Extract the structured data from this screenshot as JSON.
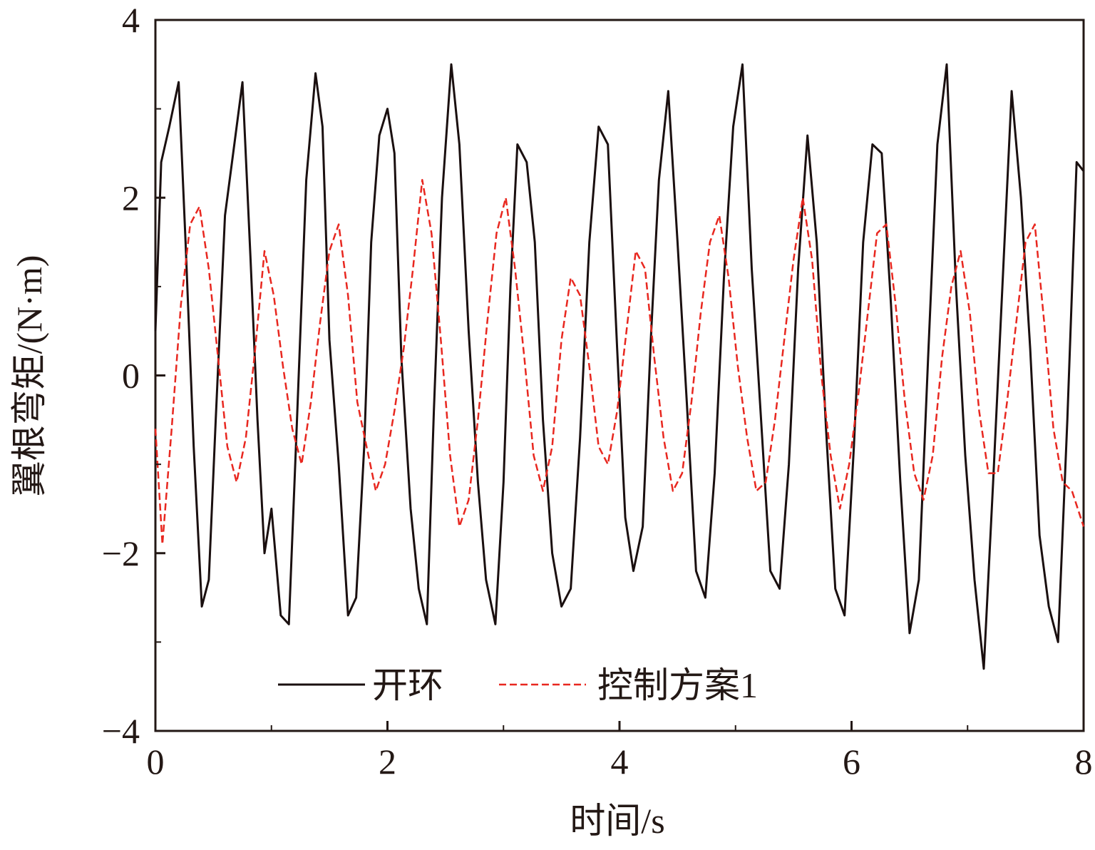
{
  "chart_data": {
    "type": "line",
    "xlabel": "时间/s",
    "ylabel": "翼根弯矩/(N·m)",
    "xlim": [
      0,
      8
    ],
    "ylim": [
      -4,
      4
    ],
    "x_ticks": [
      "0",
      "2",
      "4",
      "6",
      "8"
    ],
    "y_ticks": [
      "4",
      "2",
      "0",
      "−2",
      "−4"
    ],
    "grid": false,
    "legend_position": "bottom-center",
    "colors": {
      "open_loop": "#1a0f0f",
      "control_1": "#e8271f",
      "axis": "#231815"
    },
    "series": [
      {
        "name": "开环",
        "color": "#1a0f0f",
        "style": "solid",
        "x": [
          0,
          0.05,
          0.12,
          0.2,
          0.26,
          0.33,
          0.4,
          0.46,
          0.52,
          0.6,
          0.68,
          0.75,
          0.82,
          0.88,
          0.94,
          1.0,
          1.08,
          1.15,
          1.22,
          1.3,
          1.38,
          1.44,
          1.5,
          1.58,
          1.66,
          1.73,
          1.8,
          1.86,
          1.93,
          2.0,
          2.06,
          2.12,
          2.2,
          2.27,
          2.34,
          2.4,
          2.47,
          2.55,
          2.62,
          2.7,
          2.78,
          2.85,
          2.93,
          3.0,
          3.06,
          3.12,
          3.2,
          3.27,
          3.34,
          3.42,
          3.5,
          3.58,
          3.66,
          3.74,
          3.82,
          3.9,
          3.98,
          4.05,
          4.12,
          4.2,
          4.27,
          4.34,
          4.42,
          4.5,
          4.58,
          4.66,
          4.74,
          4.82,
          4.9,
          4.98,
          5.06,
          5.14,
          5.22,
          5.3,
          5.38,
          5.46,
          5.54,
          5.62,
          5.7,
          5.78,
          5.86,
          5.94,
          6.02,
          6.1,
          6.18,
          6.26,
          6.34,
          6.42,
          6.5,
          6.58,
          6.66,
          6.74,
          6.82,
          6.9,
          6.98,
          7.06,
          7.14,
          7.22,
          7.3,
          7.38,
          7.46,
          7.54,
          7.62,
          7.7,
          7.78,
          7.86,
          7.94,
          8.0
        ],
        "values": [
          0.5,
          2.4,
          2.8,
          3.3,
          1.5,
          -0.8,
          -2.6,
          -2.3,
          -0.5,
          1.8,
          2.6,
          3.3,
          1.3,
          -0.5,
          -2.0,
          -1.5,
          -2.7,
          -2.8,
          -0.5,
          2.2,
          3.4,
          2.8,
          0.4,
          -1.0,
          -2.7,
          -2.5,
          -0.8,
          1.5,
          2.7,
          3.0,
          2.5,
          0.2,
          -1.5,
          -2.4,
          -2.8,
          -0.4,
          2.0,
          3.5,
          2.6,
          0.5,
          -1.2,
          -2.3,
          -2.8,
          -1.2,
          1.0,
          2.6,
          2.4,
          1.5,
          -0.5,
          -2.0,
          -2.6,
          -2.4,
          -0.7,
          1.5,
          2.8,
          2.6,
          0.3,
          -1.6,
          -2.2,
          -1.7,
          0.4,
          2.2,
          3.2,
          1.5,
          -0.3,
          -2.2,
          -2.5,
          -1.1,
          1.1,
          2.8,
          3.5,
          1.2,
          -0.5,
          -2.2,
          -2.4,
          -1.0,
          1.2,
          2.7,
          1.5,
          -0.6,
          -2.4,
          -2.7,
          -0.8,
          1.5,
          2.6,
          2.5,
          0.8,
          -1.2,
          -2.9,
          -2.3,
          0.2,
          2.6,
          3.5,
          1.0,
          -0.9,
          -2.3,
          -3.3,
          -1.2,
          1.0,
          3.2,
          2.0,
          0.3,
          -1.8,
          -2.6,
          -3.0,
          -0.5,
          2.4,
          2.3
        ]
      },
      {
        "name": "控制方案1",
        "color": "#e8271f",
        "style": "dashed",
        "x": [
          0,
          0.06,
          0.14,
          0.22,
          0.3,
          0.38,
          0.46,
          0.54,
          0.62,
          0.7,
          0.78,
          0.86,
          0.94,
          1.02,
          1.1,
          1.18,
          1.26,
          1.34,
          1.42,
          1.5,
          1.58,
          1.66,
          1.74,
          1.82,
          1.9,
          1.98,
          2.06,
          2.14,
          2.22,
          2.3,
          2.38,
          2.46,
          2.54,
          2.62,
          2.7,
          2.78,
          2.86,
          2.94,
          3.02,
          3.1,
          3.18,
          3.26,
          3.34,
          3.42,
          3.5,
          3.58,
          3.66,
          3.74,
          3.82,
          3.9,
          3.98,
          4.06,
          4.14,
          4.22,
          4.3,
          4.38,
          4.46,
          4.54,
          4.62,
          4.7,
          4.78,
          4.86,
          4.94,
          5.02,
          5.1,
          5.18,
          5.26,
          5.34,
          5.42,
          5.5,
          5.58,
          5.66,
          5.74,
          5.82,
          5.9,
          5.98,
          6.06,
          6.14,
          6.22,
          6.3,
          6.38,
          6.46,
          6.54,
          6.62,
          6.7,
          6.78,
          6.86,
          6.94,
          7.02,
          7.1,
          7.18,
          7.26,
          7.34,
          7.42,
          7.5,
          7.58,
          7.66,
          7.74,
          7.82,
          7.9,
          8.0
        ],
        "values": [
          -0.6,
          -1.9,
          -0.6,
          0.8,
          1.7,
          1.9,
          1.2,
          0.2,
          -0.8,
          -1.2,
          -0.7,
          0.3,
          1.4,
          0.9,
          0.1,
          -0.6,
          -1.0,
          -0.3,
          0.6,
          1.4,
          1.7,
          0.9,
          -0.3,
          -0.8,
          -1.3,
          -1.0,
          -0.4,
          0.3,
          1.2,
          2.2,
          1.6,
          0.4,
          -0.9,
          -1.7,
          -1.4,
          -0.5,
          0.6,
          1.6,
          2.0,
          1.2,
          0.2,
          -0.9,
          -1.3,
          -0.8,
          0.4,
          1.1,
          0.9,
          0.1,
          -0.8,
          -1.0,
          -0.4,
          0.5,
          1.4,
          1.2,
          0.2,
          -0.7,
          -1.3,
          -1.1,
          -0.3,
          0.7,
          1.5,
          1.8,
          1.1,
          0.1,
          -0.7,
          -1.3,
          -1.2,
          -0.5,
          0.4,
          1.3,
          2.0,
          1.3,
          0.0,
          -0.9,
          -1.5,
          -1.0,
          -0.2,
          0.7,
          1.6,
          1.7,
          0.8,
          -0.3,
          -1.1,
          -1.4,
          -0.9,
          0.2,
          1.0,
          1.4,
          0.7,
          -0.4,
          -1.1,
          -1.1,
          -0.3,
          0.6,
          1.5,
          1.7,
          0.6,
          -0.6,
          -1.2,
          -1.3,
          -1.7
        ]
      }
    ]
  }
}
